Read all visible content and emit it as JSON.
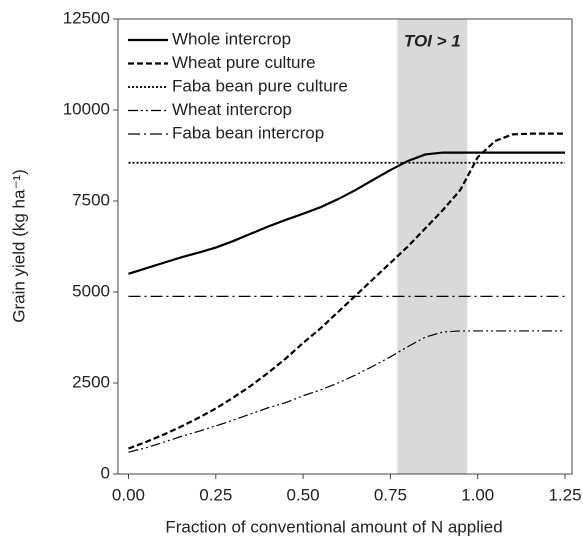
{
  "chart_data": {
    "type": "line",
    "x_label": "Fraction of conventional amount of N applied",
    "y_label": "Grain yield (kg ha⁻¹)",
    "annotation": "TOI > 1",
    "shade": [
      0.77,
      0.97
    ],
    "shade_color": "#d9d9d9",
    "x": [
      0,
      0.05,
      0.1,
      0.15,
      0.2,
      0.25,
      0.3,
      0.35,
      0.4,
      0.45,
      0.5,
      0.55,
      0.6,
      0.65,
      0.7,
      0.75,
      0.8,
      0.85,
      0.9,
      0.95,
      1.0,
      1.05,
      1.1,
      1.15,
      1.2,
      1.25
    ],
    "series": [
      {
        "name": "Whole intercrop",
        "color": "#000000",
        "dash": "none",
        "width": 2.2,
        "values": [
          5500,
          5650,
          5800,
          5950,
          6080,
          6220,
          6400,
          6600,
          6800,
          6980,
          7150,
          7330,
          7550,
          7800,
          8080,
          8350,
          8600,
          8780,
          8830,
          8830,
          8830,
          8830,
          8830,
          8830,
          8830,
          8830
        ]
      },
      {
        "name": "Wheat pure culture",
        "color": "#000000",
        "dash": "6,3",
        "width": 2.2,
        "values": [
          700,
          880,
          1080,
          1300,
          1540,
          1800,
          2100,
          2420,
          2780,
          3170,
          3600,
          4000,
          4450,
          4900,
          5350,
          5800,
          6250,
          6750,
          7250,
          7800,
          8700,
          9150,
          9330,
          9350,
          9350,
          9350
        ]
      },
      {
        "name": "Faba bean pure culture",
        "color": "#000000",
        "dash": "2,2",
        "width": 1.8,
        "values": [
          8550,
          8550,
          8550,
          8550,
          8550,
          8550,
          8550,
          8550,
          8550,
          8550,
          8550,
          8550,
          8550,
          8550,
          8550,
          8550,
          8550,
          8550,
          8550,
          8550,
          8550,
          8550,
          8550,
          8550,
          8550,
          8550
        ]
      },
      {
        "name": "Wheat intercrop",
        "color": "#000000",
        "dash": "10,3,2,3,2,3",
        "width": 1.2,
        "values": [
          600,
          720,
          870,
          1030,
          1170,
          1320,
          1480,
          1650,
          1820,
          1960,
          2150,
          2310,
          2500,
          2720,
          2960,
          3220,
          3500,
          3760,
          3900,
          3930,
          3930,
          3930,
          3930,
          3930,
          3930,
          3930
        ]
      },
      {
        "name": "Faba bean intercrop",
        "color": "#000000",
        "dash": "12,4,2,4",
        "width": 1.2,
        "values": [
          4880,
          4880,
          4880,
          4880,
          4880,
          4880,
          4880,
          4880,
          4880,
          4880,
          4880,
          4880,
          4880,
          4880,
          4880,
          4880,
          4880,
          4880,
          4880,
          4880,
          4880,
          4880,
          4880,
          4880,
          4880,
          4880
        ]
      }
    ],
    "xlim": [
      -0.03,
      1.27
    ],
    "xticks": [
      {
        "value": 0,
        "label": "0.00"
      },
      0.25,
      {
        "value": 0.5,
        "label": "0.50"
      },
      0.75,
      {
        "value": 1,
        "label": "1.00"
      },
      1.25
    ],
    "ylim": [
      0,
      12500
    ],
    "yticks": [
      0,
      2500,
      5000,
      7500,
      10000,
      12500
    ],
    "grid": false
  }
}
